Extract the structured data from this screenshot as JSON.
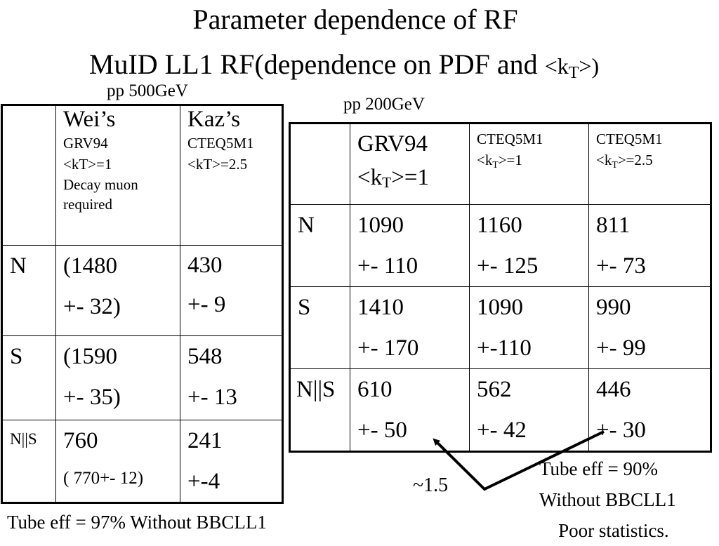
{
  "title": {
    "line1": "Parameter dependence of RF",
    "line2_main": "MuID LL1 RF(dependence on PDF and ",
    "line2_kt": "<k",
    "line2_sub": "T",
    "line2_end": ">)"
  },
  "table_500": {
    "caption": "pp 500GeV",
    "headers": [
      {
        "name": "Wei’s",
        "lines": [
          "GRV94",
          "<kT>=1",
          "Decay muon required"
        ]
      },
      {
        "name": "Kaz’s",
        "lines": [
          "CTEQ5M1",
          "<kT>=2.5"
        ]
      }
    ],
    "rows": [
      {
        "label": "N",
        "cells": [
          [
            "(1480",
            "+- 32)"
          ],
          [
            "430",
            "+- 9"
          ]
        ]
      },
      {
        "label": "S",
        "cells": [
          [
            "(1590",
            "+- 35)"
          ],
          [
            "548",
            "+- 13"
          ]
        ]
      },
      {
        "label": "N||S",
        "cells": [
          [
            "760",
            "( 770+- 12)"
          ],
          [
            "241",
            "+-4"
          ]
        ]
      }
    ]
  },
  "table_200": {
    "caption": "pp 200GeV",
    "headers": [
      {
        "pdf": "GRV94",
        "kt_pre": "<k",
        "kt_sub": "T",
        "kt_post": ">=1"
      },
      {
        "pdf": "CTEQ5M1",
        "kt_pre": "<k",
        "kt_sub": "T",
        "kt_post": ">=1"
      },
      {
        "pdf": "CTEQ5M1",
        "kt_pre": "<k",
        "kt_sub": "T",
        "kt_post": ">=2.5"
      }
    ],
    "rows": [
      {
        "label": "N",
        "cells": [
          [
            "1090",
            "+- 110"
          ],
          [
            "1160",
            "+- 125"
          ],
          [
            "811",
            "+- 73"
          ]
        ]
      },
      {
        "label": "S",
        "cells": [
          [
            "1410",
            "+- 170"
          ],
          [
            "1090",
            "+-110"
          ],
          [
            "990",
            "+- 99"
          ]
        ]
      },
      {
        "label": "N||S",
        "cells": [
          [
            "610",
            "+- 50"
          ],
          [
            "562",
            "+- 42"
          ],
          [
            "446",
            "+- 30"
          ]
        ]
      }
    ]
  },
  "notes": {
    "left": "Tube eff = 97% Without BBCLL1",
    "right": [
      "Tube eff = 90%",
      "Without BBCLL1",
      "Poor statistics."
    ],
    "ratio": "~1.5"
  }
}
